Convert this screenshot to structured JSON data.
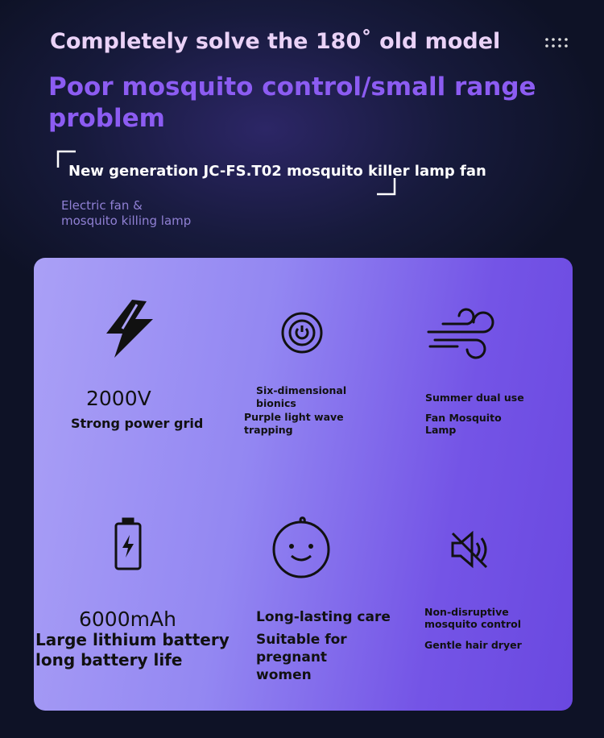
{
  "header": {
    "line1": "Completely solve the 180˚  old model",
    "headline": [
      "Poor mosquito control/small range",
      "problem"
    ],
    "subtitle": "New generation JC-FS.T02 mosquito killer lamp fan",
    "tag": [
      "Electric fan &",
      "mosquito killing lamp"
    ]
  },
  "features": [
    {
      "lines": [
        "2000V",
        "Strong power grid"
      ]
    },
    {
      "lines": [
        "Six-dimensional",
        "bionics",
        "Purple light wave",
        "trapping"
      ]
    },
    {
      "lines": [
        "Summer dual use",
        "Fan Mosquito",
        "Lamp"
      ]
    },
    {
      "lines": [
        "6000mAh",
        "Large lithium battery",
        "long battery life"
      ]
    },
    {
      "lines": [
        "Long-lasting care",
        "Suitable for",
        "pregnant",
        "women"
      ]
    },
    {
      "lines": [
        "Non-disruptive",
        "mosquito control",
        "Gentle hair dryer"
      ]
    }
  ]
}
